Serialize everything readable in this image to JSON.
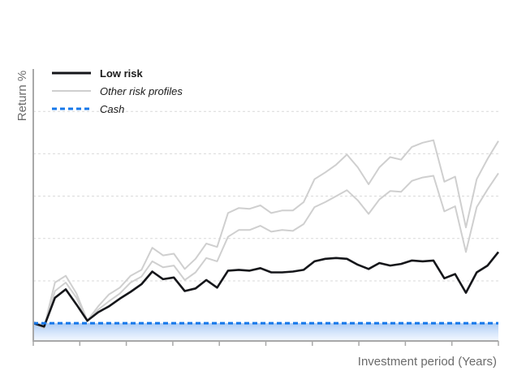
{
  "chart_data": {
    "type": "line",
    "xlabel": "Investment period (Years)",
    "ylabel": "Return %",
    "xlim": [
      0,
      50
    ],
    "ylim": [
      -2,
      30
    ],
    "grid": true,
    "legend_position": "top-left",
    "series": [
      {
        "name": "Low risk",
        "legend_style": "bold",
        "color": "#15161a",
        "values": [
          0,
          -0.4,
          3.0,
          4.0,
          2.2,
          0.3,
          1.3,
          2.0,
          2.9,
          3.7,
          4.6,
          6.1,
          5.2,
          5.4,
          3.8,
          4.1,
          5.1,
          4.2,
          6.2,
          6.3,
          6.2,
          6.5,
          6.0,
          6.0,
          6.1,
          6.3,
          7.3,
          7.6,
          7.7,
          7.6,
          6.9,
          6.4,
          7.1,
          6.8,
          7.0,
          7.4,
          7.3,
          7.4,
          5.3,
          5.8,
          3.6,
          6.0,
          6.8,
          8.4
        ]
      },
      {
        "name": "Other risk profiles",
        "legend_style": "italic",
        "color": "#cfcfcf",
        "values": [
          0.2,
          -0.5,
          4.8,
          5.6,
          3.5,
          0.3,
          2.0,
          3.4,
          4.2,
          5.6,
          6.3,
          8.9,
          8.0,
          8.2,
          6.4,
          7.6,
          9.4,
          9.0,
          13.0,
          13.6,
          13.5,
          13.9,
          13.0,
          13.3,
          13.3,
          14.3,
          17.0,
          17.8,
          18.7,
          19.9,
          18.4,
          16.4,
          18.4,
          19.6,
          19.3,
          20.8,
          21.3,
          21.6,
          16.7,
          17.3,
          11.3,
          17.0,
          19.4,
          21.5
        ]
      },
      {
        "name": "",
        "color": "#cfcfcf",
        "values": [
          0.1,
          -0.6,
          3.8,
          4.8,
          3.0,
          0.2,
          1.6,
          2.6,
          3.5,
          4.8,
          5.5,
          7.3,
          6.6,
          6.8,
          5.1,
          6.0,
          7.7,
          7.3,
          10.2,
          11.0,
          11.0,
          11.5,
          10.8,
          11.0,
          10.9,
          11.7,
          13.7,
          14.3,
          15.0,
          15.7,
          14.5,
          12.9,
          14.6,
          15.6,
          15.5,
          16.8,
          17.2,
          17.4,
          13.2,
          13.8,
          8.4,
          13.7,
          15.8,
          17.7
        ]
      },
      {
        "name": "Cash",
        "legend_style": "italic",
        "color": "#1577ea",
        "dashed": true,
        "values": [
          0,
          0
        ]
      }
    ]
  }
}
